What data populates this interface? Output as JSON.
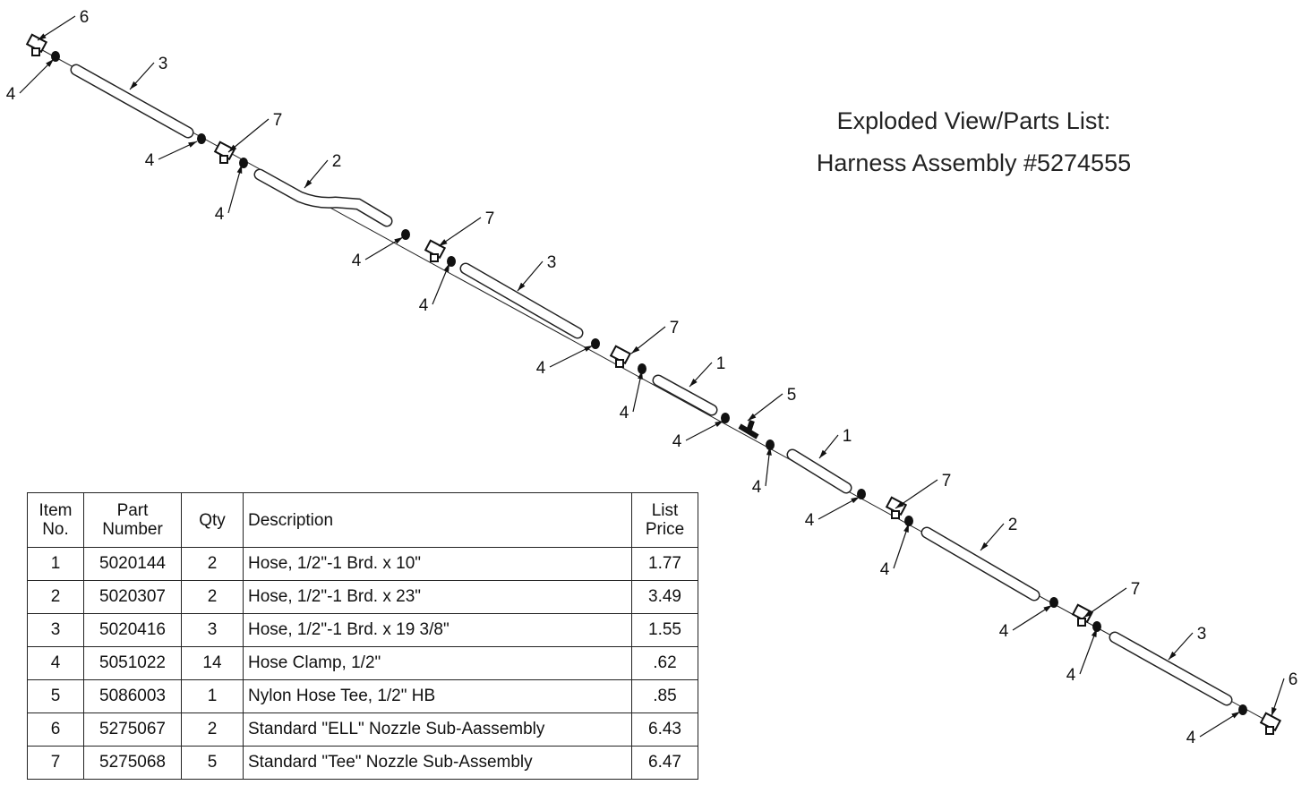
{
  "title": {
    "line1": "Exploded View/Parts List:",
    "line2": "Harness Assembly #5274555"
  },
  "callouts": [
    "6",
    "4",
    "3",
    "4",
    "7",
    "4",
    "2",
    "4",
    "7",
    "4",
    "3",
    "4",
    "7",
    "4",
    "1",
    "5",
    "4",
    "4",
    "1",
    "4",
    "7",
    "4",
    "2",
    "4",
    "7",
    "4",
    "3",
    "4",
    "6"
  ],
  "table": {
    "header": [
      "Item No.",
      "Part Number",
      "Qty",
      "Description",
      "List Price"
    ],
    "rows": [
      [
        "1",
        "5020144",
        "2",
        "Hose, 1/2\"-1 Brd. x 10\"",
        "1.77"
      ],
      [
        "2",
        "5020307",
        "2",
        "Hose, 1/2\"-1 Brd. x 23\"",
        "3.49"
      ],
      [
        "3",
        "5020416",
        "3",
        "Hose, 1/2\"-1 Brd. x 19 3/8\"",
        "1.55"
      ],
      [
        "4",
        "5051022",
        "14",
        "Hose Clamp, 1/2\"",
        ".62"
      ],
      [
        "5",
        "5086003",
        "1",
        "Nylon Hose Tee, 1/2\" HB",
        ".85"
      ],
      [
        "6",
        "5275067",
        "2",
        "Standard \"ELL\" Nozzle Sub-Aassembly",
        "6.43"
      ],
      [
        "7",
        "5275068",
        "5",
        "Standard \"Tee\" Nozzle Sub-Assembly",
        "6.47"
      ]
    ]
  }
}
